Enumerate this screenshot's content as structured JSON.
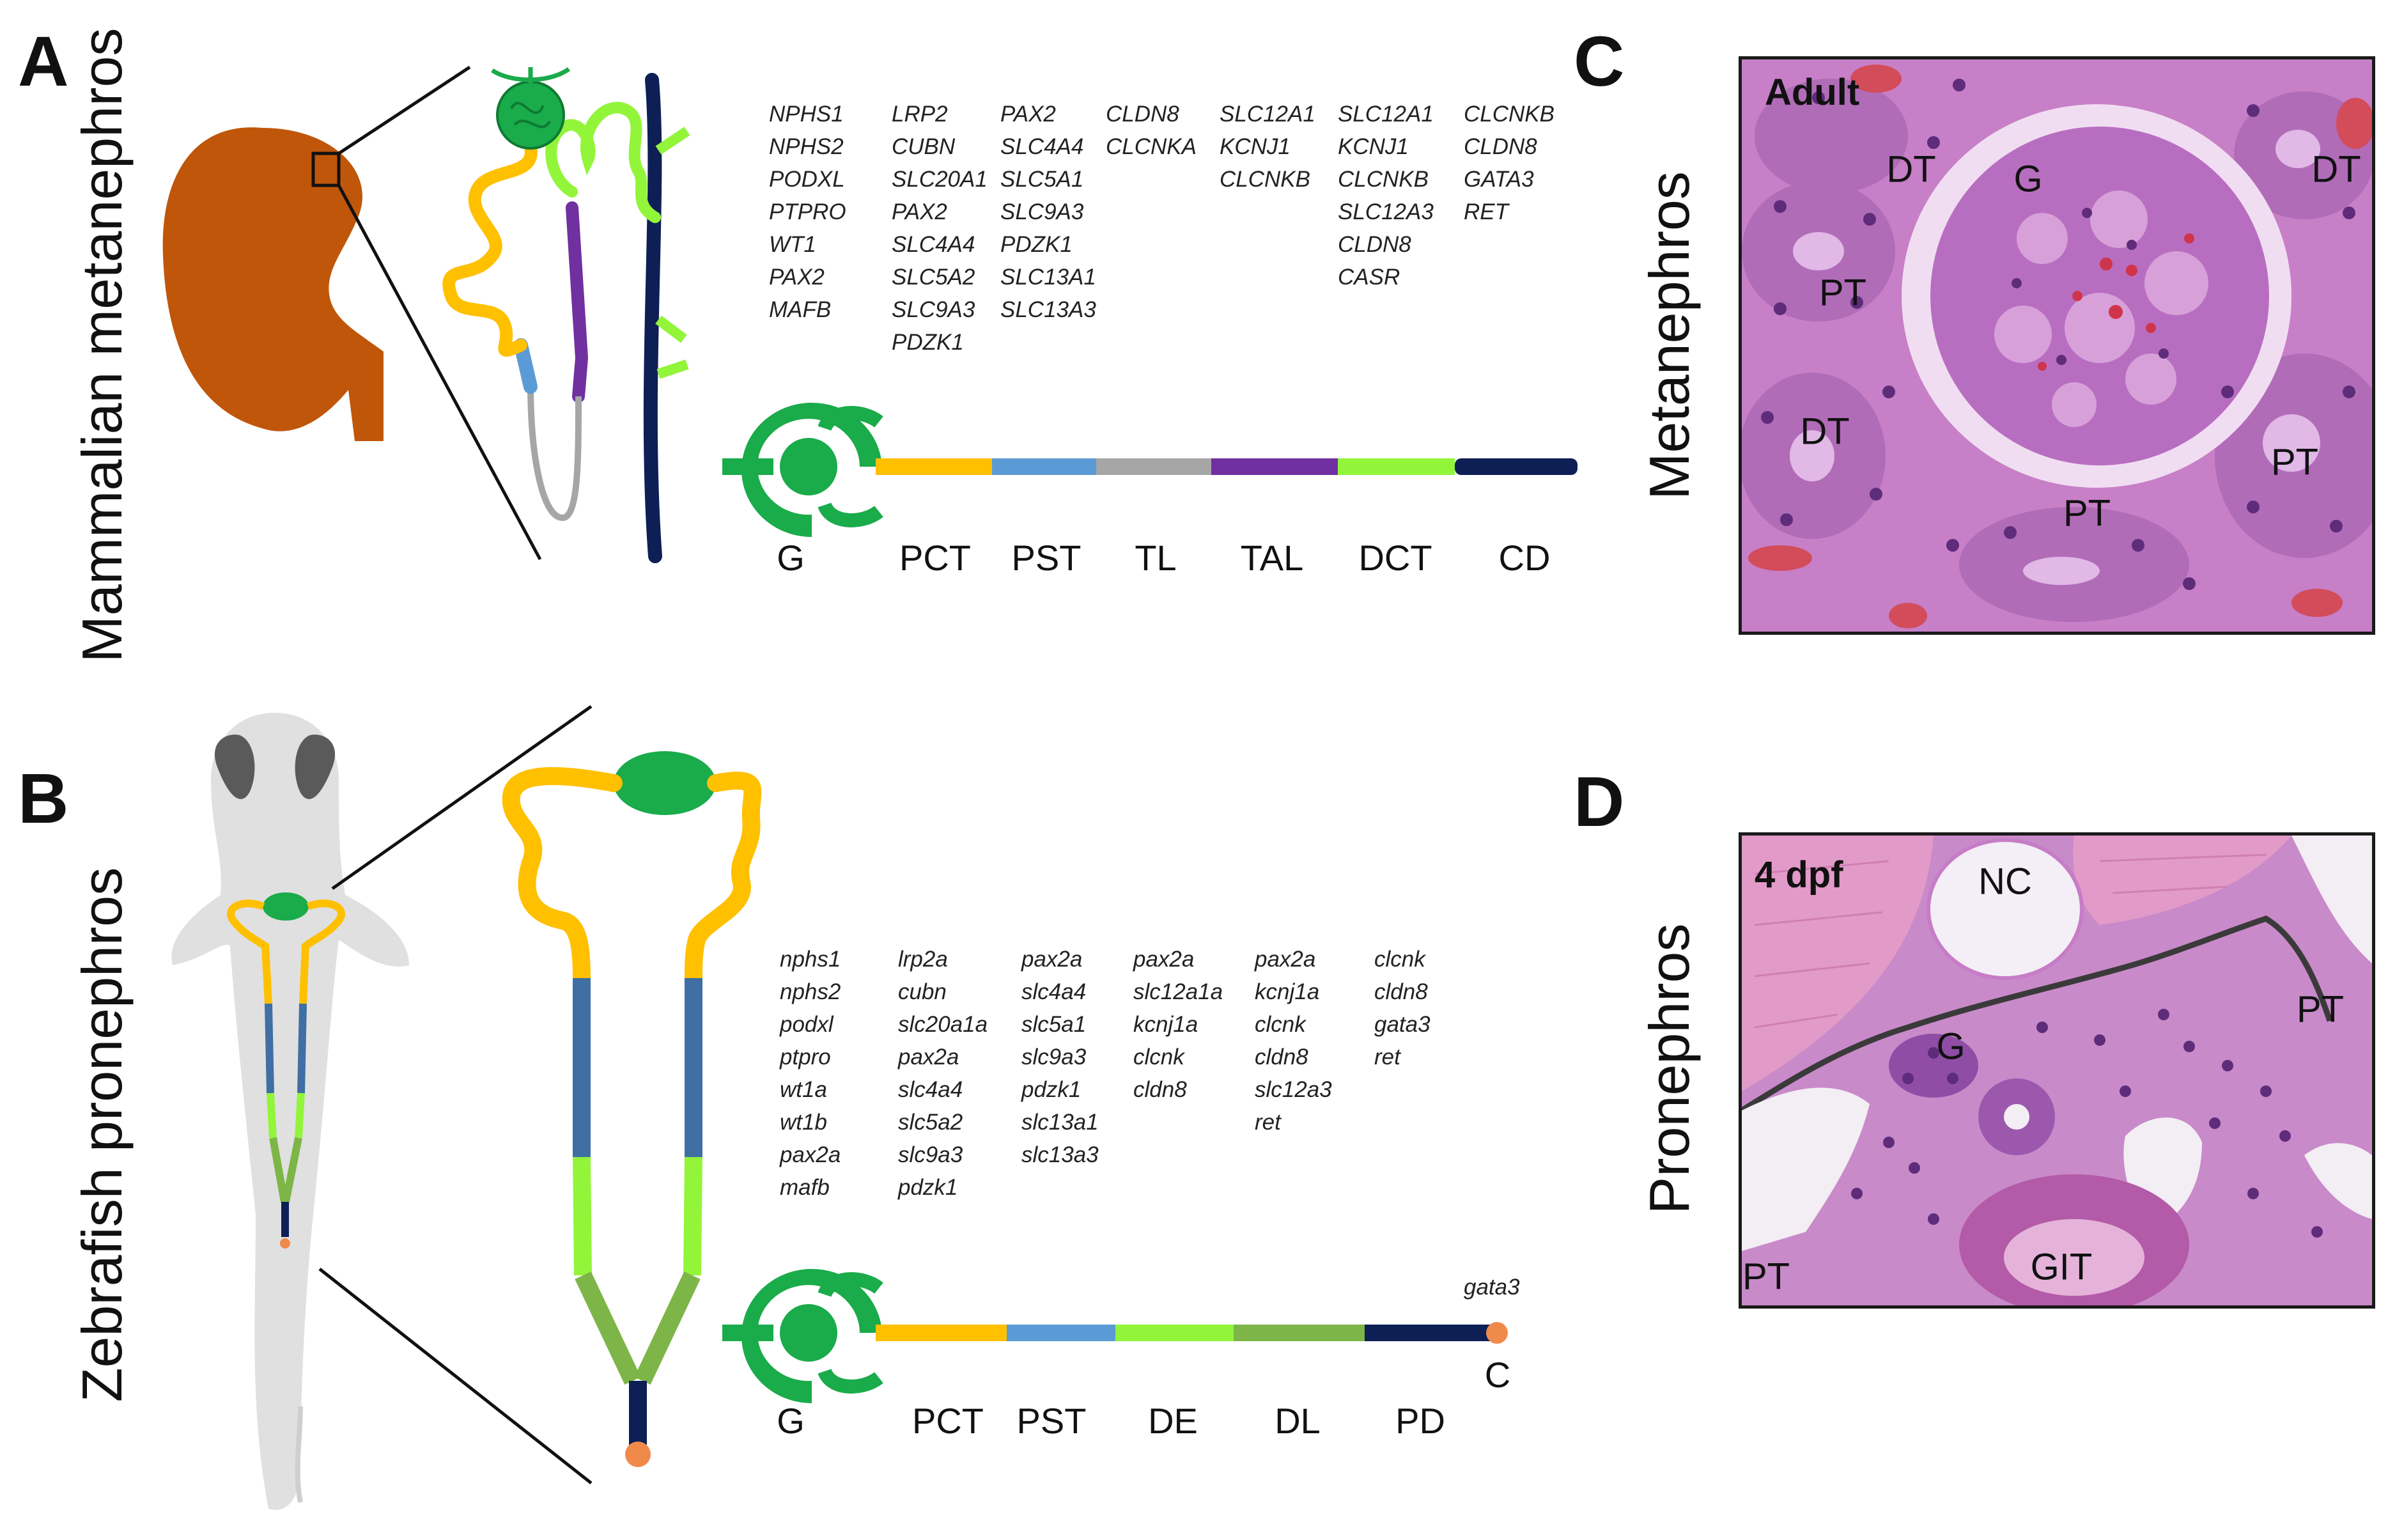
{
  "panels": {
    "A": {
      "letter": "A",
      "title": "Mammalian metanephros",
      "genes": [
        [
          "NPHS1",
          "NPHS2",
          "PODXL",
          "PTPRO",
          "WT1",
          "PAX2",
          "MAFB"
        ],
        [
          "LRP2",
          "CUBN",
          "SLC20A1",
          "PAX2",
          "SLC4A4",
          "SLC5A2",
          "SLC9A3",
          "PDZK1"
        ],
        [
          "PAX2",
          "SLC4A4",
          "SLC5A1",
          "SLC9A3",
          "PDZK1",
          "SLC13A1",
          "SLC13A3"
        ],
        [
          "CLDN8",
          "CLCNKA"
        ],
        [
          "SLC12A1",
          "KCNJ1",
          "CLCNKB"
        ],
        [
          "SLC12A1",
          "KCNJ1",
          "CLCNKB",
          "SLC12A3",
          "CLDN8",
          "CASR"
        ],
        [
          "CLCNKB",
          "CLDN8",
          "GATA3",
          "RET"
        ]
      ],
      "segments": [
        {
          "label": "G",
          "color": "#1aab4a"
        },
        {
          "label": "PCT",
          "color": "#ffc000"
        },
        {
          "label": "PST",
          "color": "#5b9bd5"
        },
        {
          "label": "TL",
          "color": "#a6a6a6"
        },
        {
          "label": "TAL",
          "color": "#7030a0"
        },
        {
          "label": "DCT",
          "color": "#92f53a"
        },
        {
          "label": "CD",
          "color": "#0d1f55"
        }
      ]
    },
    "B": {
      "letter": "B",
      "title": "Zebrafish pronephros",
      "genes": [
        [
          "nphs1",
          "nphs2",
          "podxl",
          "ptpro",
          "wt1a",
          "wt1b",
          "pax2a",
          "mafb"
        ],
        [
          "lrp2a",
          "cubn",
          "slc20a1a",
          "pax2a",
          "slc4a4",
          "slc5a2",
          "slc9a3",
          "pdzk1"
        ],
        [
          "pax2a",
          "slc4a4",
          "slc5a1",
          "slc9a3",
          "pdzk1",
          "slc13a1",
          "slc13a3"
        ],
        [
          "pax2a",
          "slc12a1a",
          "kcnj1a",
          "clcnk",
          "cldn8"
        ],
        [
          "pax2a",
          "kcnj1a",
          "clcnk",
          "cldn8",
          "slc12a3",
          "ret"
        ],
        [
          "clcnk",
          "cldn8",
          "gata3",
          "ret"
        ]
      ],
      "extra_gene": "gata3",
      "segments": [
        {
          "label": "G",
          "color": "#1aab4a"
        },
        {
          "label": "PCT",
          "color": "#ffc000"
        },
        {
          "label": "PST",
          "color": "#5b9bd5"
        },
        {
          "label": "DE",
          "color": "#92f53a"
        },
        {
          "label": "DL",
          "color": "#7eb548"
        },
        {
          "label": "PD",
          "color": "#0d1f55"
        }
      ],
      "end_label": "C",
      "end_color": "#f08a4b"
    },
    "C": {
      "letter": "C",
      "title": "Metanephros",
      "stage": "Adult",
      "labels": [
        "DT",
        "G",
        "DT",
        "PT",
        "DT",
        "PT",
        "PT"
      ]
    },
    "D": {
      "letter": "D",
      "title": "Pronephros",
      "stage": "4 dpf",
      "labels": [
        "NC",
        "PT",
        "G",
        "PT",
        "GIT"
      ]
    }
  },
  "colors": {
    "kidney": "#c0560a",
    "glomerulus": "#1aab4a",
    "fish_body": "#e0e0e0",
    "fish_eye": "#5a5a5a",
    "histo_pink": "#c77fc7",
    "histo_purple": "#8a4aa8"
  }
}
